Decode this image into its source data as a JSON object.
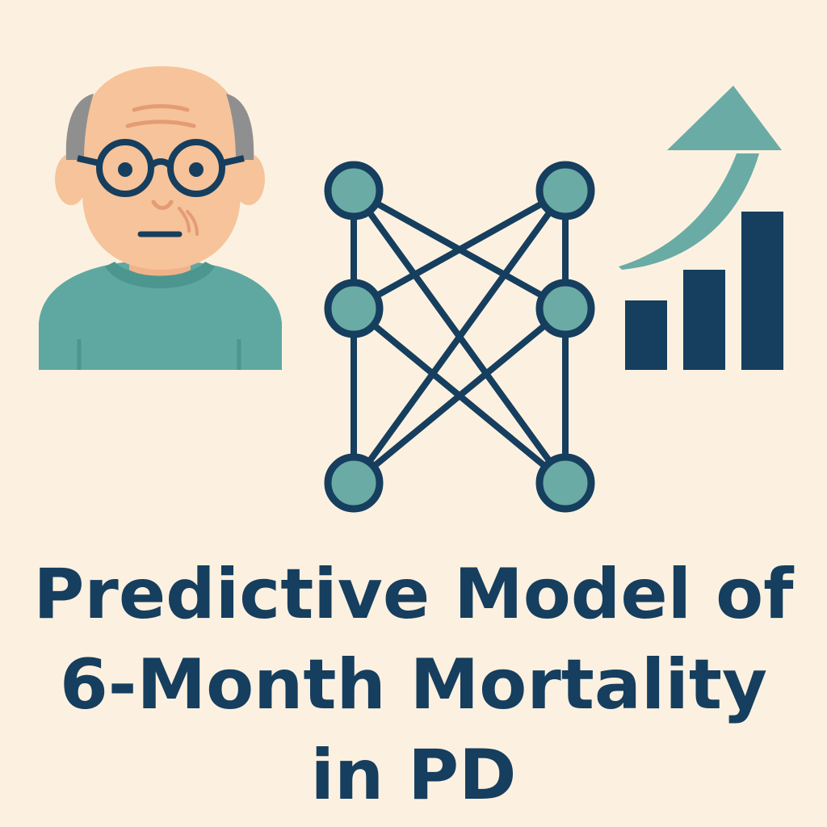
{
  "title": {
    "line1": "Predictive Model of",
    "line2": "6-Month Mortality",
    "line3": "in PD"
  },
  "icons": {
    "patient": "elderly-man-icon",
    "network": "neural-network-icon",
    "trend": "rising-bar-chart-icon"
  },
  "colors": {
    "background": "#fcf1e0",
    "navy": "#163e5e",
    "teal": "#5fa8a2",
    "skin": "#f6c39a",
    "hair": "#8f8f8f"
  }
}
